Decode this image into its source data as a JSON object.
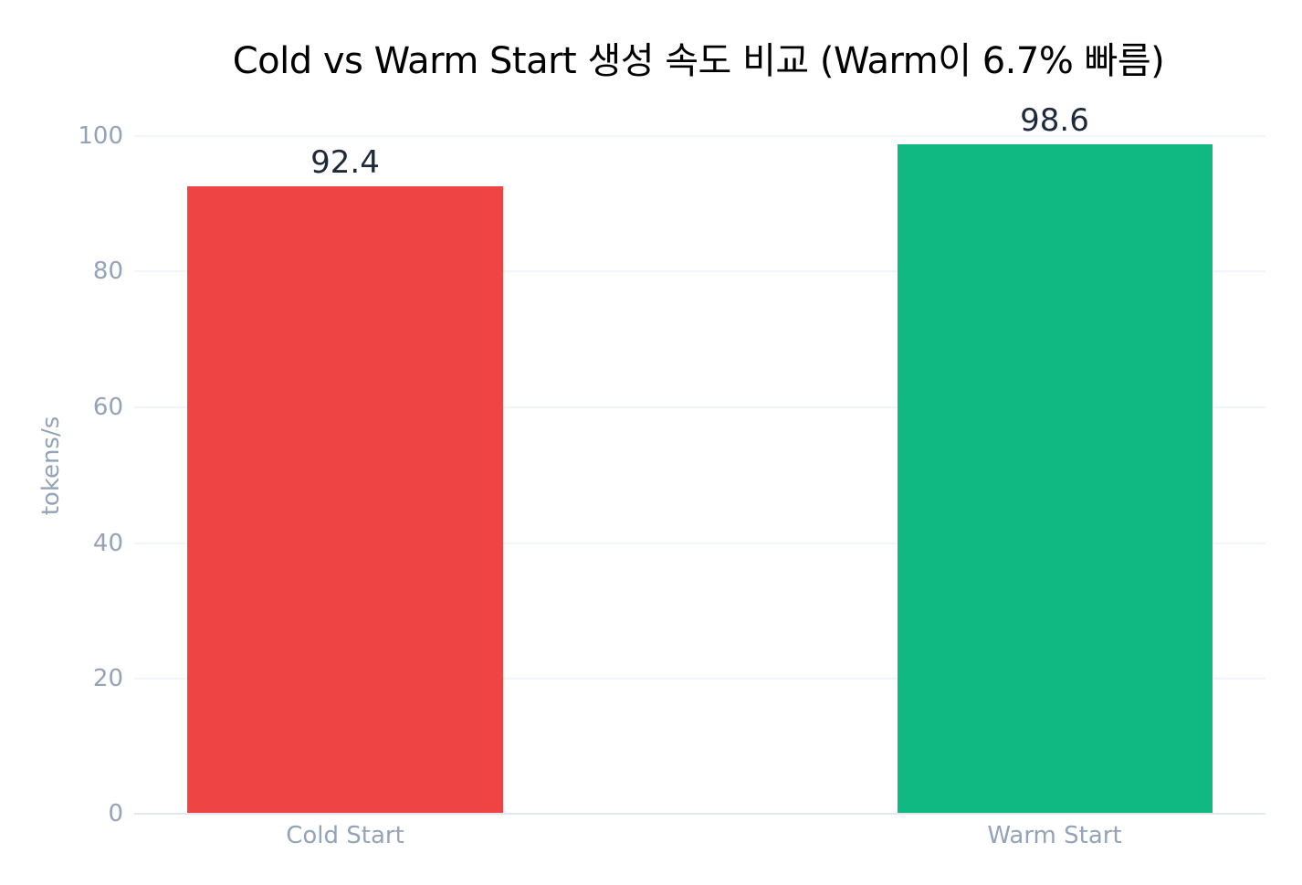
{
  "chart_data": {
    "type": "bar",
    "title": "Cold vs Warm Start 생성 속도 비교 (Warm이 6.7% 빠름)",
    "xlabel": "",
    "ylabel": "tokens/s",
    "categories": [
      "Cold Start",
      "Warm Start"
    ],
    "values": [
      92.4,
      98.6
    ],
    "value_labels": [
      "92.4",
      "98.6"
    ],
    "colors": [
      "#ef4444",
      "#10b981"
    ],
    "ylim": [
      0,
      100
    ],
    "yticks": [
      "0",
      "20",
      "40",
      "60",
      "80",
      "100"
    ],
    "grid": true,
    "legend": "none"
  }
}
